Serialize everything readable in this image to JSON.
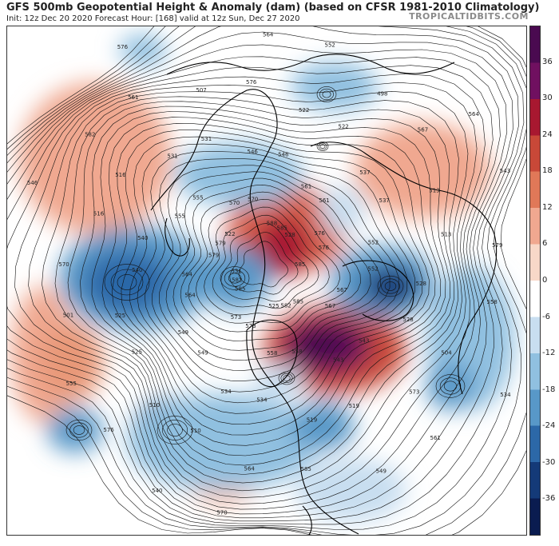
{
  "header": {
    "title": "GFS 500mb Geopotential Height & Anomaly (dam) (based on CFSR 1981-2010 Climatology)",
    "subtitle": "Init: 12z Dec 20 2020   Forecast Hour: [168]   valid at 12z Sun, Dec 27 2020",
    "brand": "TROPICALTIDBITS.COM"
  },
  "colorbar": {
    "labels": [
      "36",
      "30",
      "24",
      "18",
      "12",
      "6",
      "0",
      "-6",
      "-12",
      "-18",
      "-24",
      "-30",
      "-36"
    ],
    "colors": [
      "#4a0a50",
      "#701060",
      "#a81830",
      "#c84838",
      "#e07858",
      "#f0a890",
      "#f8d8c8",
      "#ffffff",
      "#c8def0",
      "#90c0e0",
      "#5898c8",
      "#2c68a8",
      "#143a78",
      "#0a1c50"
    ]
  },
  "map": {
    "contour_labels": [
      "585",
      "585",
      "588",
      "585",
      "579",
      "576",
      "573",
      "570",
      "567",
      "564",
      "561",
      "558",
      "555",
      "552",
      "549",
      "546",
      "543",
      "540",
      "537",
      "534",
      "531",
      "528",
      "525",
      "522",
      "519",
      "516",
      "513",
      "510",
      "507",
      "504",
      "501",
      "498",
      "585",
      "582",
      "579",
      "576",
      "564",
      "561",
      "567",
      "564",
      "570",
      "576",
      "579",
      "582",
      "585",
      "582",
      "579",
      "576",
      "573",
      "570",
      "567",
      "564",
      "561",
      "558",
      "555",
      "552",
      "549",
      "546",
      "543",
      "540",
      "537",
      "534",
      "531",
      "528",
      "525",
      "522",
      "519",
      "516",
      "513",
      "510",
      "576",
      "573",
      "570",
      "567",
      "564",
      "561",
      "558",
      "555",
      "552",
      "549",
      "546",
      "543",
      "540",
      "537",
      "534",
      "531",
      "528",
      "525",
      "522"
    ]
  }
}
